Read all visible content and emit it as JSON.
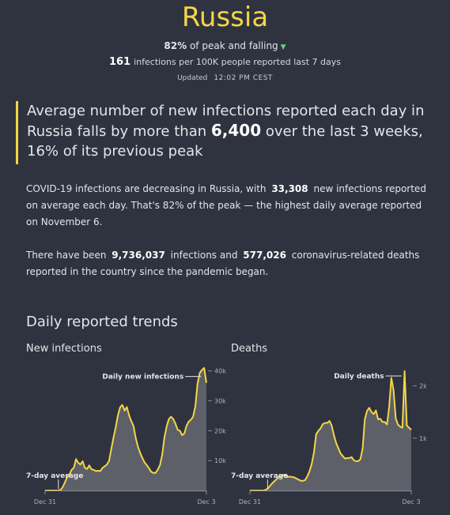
{
  "header": {
    "title": "Russia",
    "peak_pct": "82%",
    "peak_text": "of peak and falling",
    "trend_icon": "down-triangle-icon",
    "infections_number": "161",
    "infections_text": "infections per 100K people reported last 7 days",
    "updated_label": "Updated",
    "updated_time": "12:02 PM CEST"
  },
  "callout": {
    "text_before": "Average number of new infections reported each day in Russia falls by more than",
    "number": "6,400",
    "text_after": "over the last 3 weeks, 16% of its previous peak"
  },
  "paragraph1": {
    "text1": "COVID-19 infections are decreasing in Russia, with",
    "number": "33,308",
    "text2": "new infections reported on average each day. That's 82% of the peak — the highest daily average reported on November 6."
  },
  "paragraph2": {
    "text1": "There have been",
    "infections": "9,736,037",
    "text2": "infections and",
    "deaths": "577,026",
    "text3": "coronavirus-related deaths reported in the country since the pandemic began."
  },
  "section_title": "Daily reported trends",
  "colors": {
    "background": "#2f3340",
    "accent": "#f5d547",
    "area_fill": "#5d6068",
    "trend_down": "#5ecf82"
  },
  "chart_data": [
    {
      "type": "area",
      "title": "New infections",
      "series_label": "Daily new infections",
      "average_label": "7-day average",
      "x_start_label": "Dec 31",
      "x_end_label": "Dec 3",
      "yticks": [
        10000,
        20000,
        30000,
        40000
      ],
      "ytick_labels": [
        "10k",
        "20k",
        "30k",
        "40k"
      ],
      "ylim": [
        0,
        42000
      ],
      "daily": [
        0,
        0,
        0,
        0,
        0,
        0,
        0,
        300,
        1500,
        3000,
        4800,
        5500,
        7200,
        7800,
        11200,
        9000,
        8500,
        10200,
        7300,
        7100,
        8800,
        6900,
        6900,
        6400,
        6700,
        6400,
        7800,
        8200,
        8900,
        10300,
        14800,
        18500,
        21800,
        26000,
        28400,
        28800,
        26200,
        28700,
        24800,
        23000,
        21800,
        17300,
        14500,
        12400,
        10800,
        9200,
        8400,
        7400,
        6100,
        5800,
        5800,
        7200,
        8800,
        12500,
        18400,
        21900,
        24200,
        25000,
        23900,
        22200,
        20100,
        20000,
        18300,
        19200,
        21900,
        23100,
        23800,
        24800,
        28600,
        36500,
        40000,
        40700,
        41300,
        36600
      ],
      "average": [
        0,
        0,
        0,
        0,
        0,
        0,
        0,
        200,
        1200,
        2800,
        4500,
        5300,
        6900,
        7600,
        10500,
        9300,
        8700,
        9800,
        7600,
        7200,
        8400,
        7100,
        6900,
        6500,
        6600,
        6500,
        7600,
        8100,
        8700,
        10000,
        14000,
        17800,
        21300,
        25300,
        27900,
        28600,
        26700,
        27900,
        25200,
        23200,
        21600,
        17600,
        14700,
        12600,
        10900,
        9400,
        8500,
        7500,
        6300,
        5900,
        5900,
        7000,
        8500,
        12000,
        17800,
        21400,
        23900,
        24700,
        23900,
        22300,
        20300,
        20000,
        18500,
        19100,
        21600,
        23000,
        23700,
        24700,
        28200,
        35800,
        39300,
        40300,
        41000,
        36000
      ]
    },
    {
      "type": "area",
      "title": "Deaths",
      "series_label": "Daily deaths",
      "average_label": "7-day average",
      "x_start_label": "Dec 31",
      "x_end_label": "Dec 3",
      "yticks": [
        1000,
        2000
      ],
      "ytick_labels": [
        "1k",
        "2k"
      ],
      "ylim": [
        0,
        2400
      ],
      "daily": [
        0,
        0,
        0,
        0,
        0,
        0,
        0,
        10,
        40,
        90,
        140,
        180,
        220,
        260,
        280,
        300,
        310,
        250,
        270,
        260,
        250,
        230,
        210,
        180,
        180,
        200,
        280,
        380,
        520,
        750,
        1100,
        1150,
        1200,
        1280,
        1300,
        1290,
        1350,
        1250,
        1050,
        900,
        800,
        700,
        650,
        600,
        620,
        620,
        650,
        570,
        550,
        560,
        600,
        820,
        1400,
        1550,
        1600,
        1500,
        1450,
        1550,
        1350,
        1380,
        1300,
        1320,
        1250,
        1650,
        2250,
        1950,
        1350,
        1250,
        1220,
        1190,
        2370,
        1210,
        1200,
        1150
      ],
      "average": [
        0,
        0,
        0,
        0,
        0,
        0,
        0,
        10,
        35,
        85,
        135,
        175,
        215,
        255,
        275,
        295,
        305,
        260,
        265,
        260,
        250,
        230,
        210,
        185,
        185,
        200,
        275,
        375,
        510,
        730,
        1080,
        1140,
        1190,
        1270,
        1290,
        1290,
        1330,
        1240,
        1060,
        910,
        810,
        710,
        660,
        610,
        620,
        620,
        640,
        580,
        560,
        560,
        600,
        800,
        1360,
        1520,
        1580,
        1500,
        1460,
        1530,
        1360,
        1370,
        1310,
        1310,
        1260,
        1600,
        2150,
        1920,
        1380,
        1260,
        1220,
        1200,
        2280,
        1240,
        1200,
        1160
      ]
    }
  ]
}
